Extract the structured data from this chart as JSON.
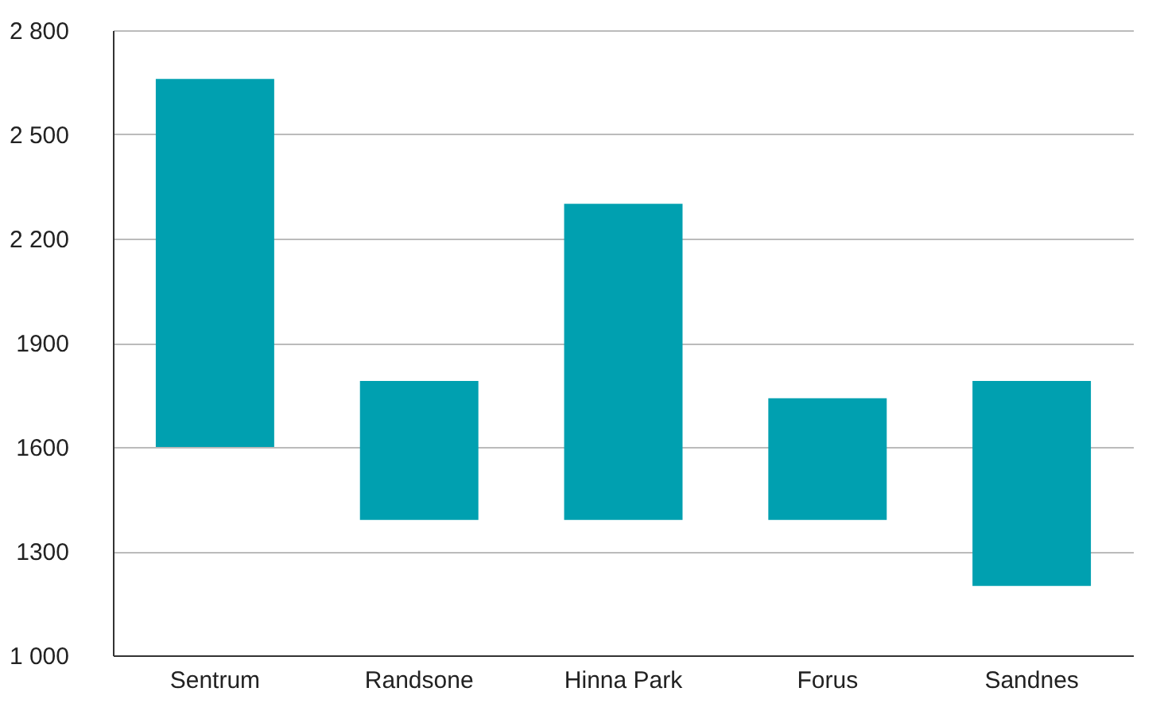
{
  "chart_data": {
    "type": "bar",
    "categories": [
      "Sentrum",
      "Randsone",
      "Hinna Park",
      "Forus",
      "Sandnes"
    ],
    "base": [
      1600,
      1390,
      1390,
      1390,
      1200
    ],
    "values": [
      1060,
      400,
      910,
      350,
      590
    ],
    "color": "#00a0b0",
    "ylim": [
      1000,
      2800
    ],
    "yticks": [
      {
        "value": 1000,
        "label": "1 000"
      },
      1300,
      1600,
      1900,
      {
        "value": 2200,
        "label": "2 200"
      },
      {
        "value": 2500,
        "label": "2 500"
      },
      {
        "value": 2800,
        "label": "2 800"
      }
    ],
    "grid": "y"
  }
}
